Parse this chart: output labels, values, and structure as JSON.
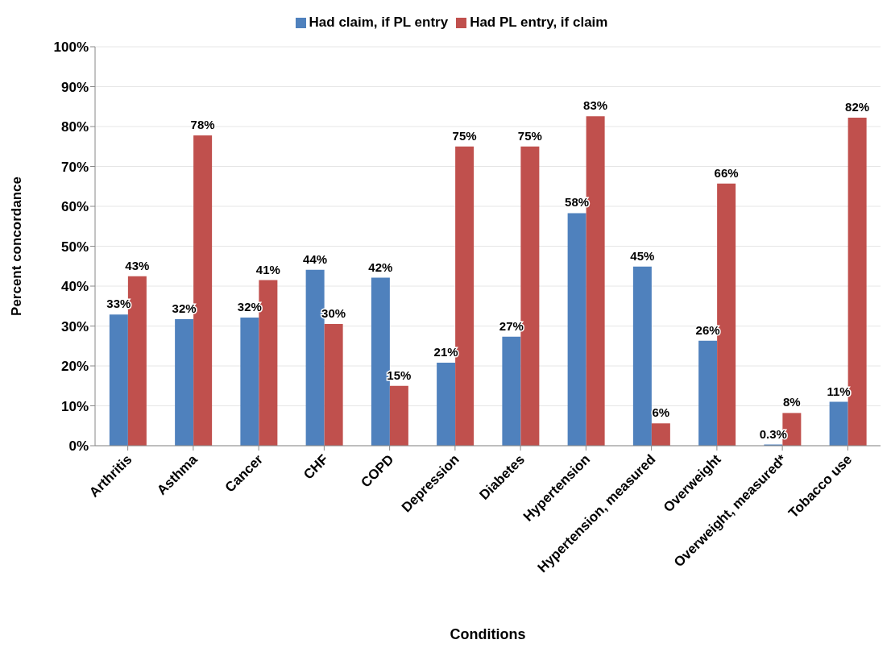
{
  "chart_data": {
    "type": "bar",
    "xlabel": "Conditions",
    "ylabel": "Percent concordance",
    "categories": [
      "Arthritis",
      "Asthma",
      "Cancer",
      "CHF",
      "COPD",
      "Depression",
      "Diabetes",
      "Hypertension",
      "Hypertension, measured",
      "Overweight",
      "Overweight, measured*",
      "Tobacco use"
    ],
    "series": [
      {
        "name": "Had claim, if PL entry",
        "color": "#4f81bd",
        "values": [
          32.9,
          31.7,
          32.1,
          44.1,
          42.1,
          20.8,
          27.3,
          58.3,
          44.9,
          26.3,
          0.3,
          11.0
        ],
        "value_labels": [
          "33%",
          "32%",
          "32%",
          "44%",
          "42%",
          "21%",
          "27%",
          "58%",
          "45%",
          "26%",
          "0.3%",
          "11%"
        ]
      },
      {
        "name": "Had PL entry, if claim",
        "color": "#c0504d",
        "values": [
          42.5,
          77.8,
          41.5,
          30.5,
          15.0,
          75.0,
          75.0,
          82.6,
          5.6,
          65.7,
          8.2,
          82.2
        ],
        "value_labels": [
          "43%",
          "78%",
          "41%",
          "30%",
          "15%",
          "75%",
          "75%",
          "83%",
          "6%",
          "66%",
          "8%",
          "82%"
        ]
      }
    ],
    "ylim": [
      0,
      100
    ],
    "yticks": [
      {
        "value": 0,
        "label": "0%"
      },
      {
        "value": 10,
        "label": "10%"
      },
      {
        "value": 20,
        "label": "20%"
      },
      {
        "value": 30,
        "label": "30%"
      },
      {
        "value": 40,
        "label": "40%"
      },
      {
        "value": 50,
        "label": "50%"
      },
      {
        "value": 60,
        "label": "60%"
      },
      {
        "value": 70,
        "label": "70%"
      },
      {
        "value": 80,
        "label": "80%"
      },
      {
        "value": 90,
        "label": "90%"
      },
      {
        "value": 100,
        "label": "100%"
      }
    ],
    "grid": "y",
    "legend": "top"
  }
}
